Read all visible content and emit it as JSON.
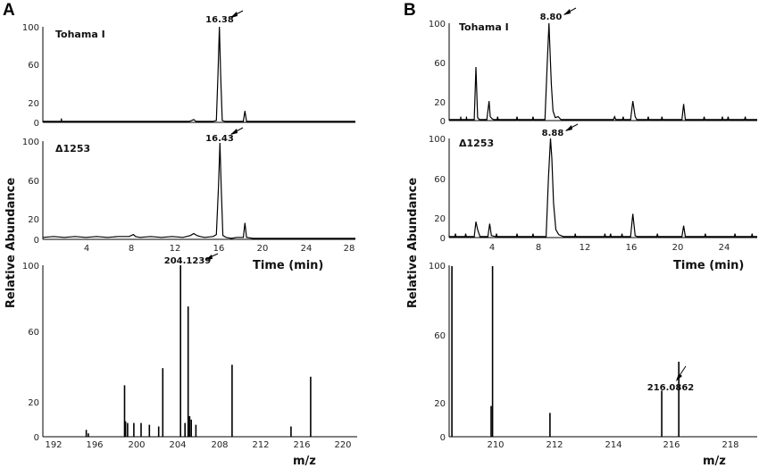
{
  "panels": [
    {
      "letter": "A",
      "ylabel": "Relative Abundance",
      "chromatograms": [
        {
          "trace_label": "Tohama I",
          "peak_label": "16.38",
          "x": [
            0,
            1.7,
            1.72,
            1.74,
            13.6,
            13.8,
            14.0,
            14.2,
            15.8,
            16.1,
            16.25,
            16.38,
            16.5,
            16.65,
            16.9,
            18.6,
            18.75,
            18.9,
            29
          ],
          "y": [
            1,
            1,
            4,
            1,
            1,
            2,
            3,
            1,
            1,
            2,
            50,
            100,
            50,
            2,
            1,
            1,
            12,
            1,
            1
          ]
        },
        {
          "trace_label": "Δ1253",
          "peak_label": "16.43",
          "x": [
            0,
            1,
            2,
            3,
            4,
            5,
            6,
            7,
            8,
            8.4,
            8.6,
            9,
            10,
            11,
            12,
            13,
            13.7,
            14.0,
            14.3,
            14.6,
            15,
            15.8,
            16.1,
            16.3,
            16.43,
            16.55,
            16.7,
            17,
            17.5,
            18,
            18.6,
            18.75,
            18.9,
            19.5,
            21,
            23,
            25,
            27,
            29
          ],
          "y": [
            2,
            3,
            2,
            3,
            2,
            3,
            2,
            3,
            3,
            5,
            3,
            2,
            3,
            2,
            3,
            2,
            4,
            6,
            4,
            3,
            2,
            3,
            5,
            55,
            100,
            55,
            4,
            2,
            1,
            2,
            2,
            17,
            2,
            1,
            1,
            1,
            1,
            1,
            1
          ]
        }
      ],
      "time_ticks": [
        "4",
        "8",
        "12",
        "16",
        "20",
        "24",
        "28"
      ],
      "time_axis_label": "Time (min)",
      "chrom_y_ticks": [
        "100",
        "60",
        "20",
        "0"
      ],
      "spectrum": {
        "peak_label": "204.1239",
        "x": [
          195.0,
          195.2,
          198.7,
          198.8,
          199.0,
          199.6,
          200.3,
          201.1,
          202.0,
          202.4,
          204.12,
          204.55,
          204.85,
          205.0,
          205.15,
          205.6,
          209.1,
          214.8,
          216.7
        ],
        "y": [
          4,
          2,
          30,
          9,
          8,
          8,
          8,
          7,
          6,
          40,
          100,
          8,
          76,
          12,
          10,
          7,
          42,
          6,
          35
        ],
        "x_ticks": [
          "192",
          "196",
          "200",
          "204",
          "208",
          "212",
          "216",
          "220"
        ],
        "y_ticks": [
          "100",
          "60",
          "20",
          "0"
        ],
        "xlabel": "m/z"
      }
    },
    {
      "letter": "B",
      "ylabel": "Relative Abundance",
      "chromatograms": [
        {
          "trace_label": "Tohama I",
          "peak_label": "8.80",
          "x": [
            0,
            1.0,
            1.02,
            1.04,
            1.5,
            1.52,
            1.54,
            2.2,
            2.35,
            2.5,
            2.65,
            3.3,
            3.5,
            3.6,
            3.75,
            3.9,
            4.2,
            4.25,
            4.3,
            5.9,
            5.95,
            6.0,
            7.3,
            7.35,
            7.4,
            8.4,
            8.6,
            8.75,
            8.8,
            8.95,
            9.1,
            9.3,
            9.55,
            9.8,
            10.2,
            14.4,
            14.5,
            14.6,
            15.2,
            15.25,
            15.3,
            15.9,
            16.1,
            16.3,
            16.45,
            17.4,
            17.45,
            17.5,
            18.6,
            18.65,
            18.7,
            20.4,
            20.55,
            20.7,
            22.3,
            22.35,
            22.4,
            23.9,
            23.95,
            24.0,
            24.4,
            24.45,
            24.5,
            25.9,
            25.95,
            26.0,
            27
          ],
          "y": [
            1,
            1,
            4,
            1,
            1,
            4,
            1,
            1,
            55,
            3,
            1,
            1,
            20,
            4,
            2,
            1,
            1,
            4,
            1,
            1,
            4,
            1,
            1,
            4,
            1,
            1,
            60,
            100,
            85,
            38,
            10,
            3,
            4,
            1,
            1,
            1,
            4,
            1,
            1,
            4,
            1,
            1,
            20,
            4,
            1,
            1,
            4,
            1,
            1,
            4,
            1,
            1,
            17,
            1,
            1,
            4,
            1,
            1,
            4,
            1,
            1,
            4,
            1,
            1,
            4,
            1,
            1
          ]
        },
        {
          "trace_label": "Δ1253",
          "peak_label": "8.88",
          "x": [
            0,
            0.5,
            0.55,
            0.6,
            1.4,
            1.45,
            1.5,
            2.2,
            2.35,
            2.5,
            2.7,
            3.4,
            3.55,
            3.7,
            4.1,
            4.15,
            4.2,
            5.9,
            5.95,
            6.0,
            7.3,
            7.35,
            7.4,
            8.5,
            8.7,
            8.88,
            9.0,
            9.15,
            9.35,
            9.6,
            10.0,
            11.0,
            11.05,
            11.1,
            13.6,
            13.65,
            13.7,
            14.1,
            14.15,
            14.2,
            15.1,
            15.15,
            15.2,
            15.9,
            16.1,
            16.3,
            16.5,
            18.2,
            18.25,
            18.3,
            20.4,
            20.55,
            20.7,
            22.4,
            22.45,
            22.5,
            25.0,
            25.05,
            25.1,
            26.5,
            26.55,
            26.6,
            27
          ],
          "y": [
            1,
            1,
            4,
            1,
            1,
            4,
            1,
            1,
            16,
            8,
            1,
            1,
            14,
            2,
            1,
            4,
            1,
            1,
            4,
            1,
            1,
            4,
            1,
            1,
            60,
            100,
            80,
            35,
            8,
            3,
            1,
            1,
            4,
            1,
            1,
            4,
            1,
            1,
            4,
            1,
            1,
            4,
            1,
            1,
            24,
            2,
            1,
            1,
            4,
            1,
            1,
            12,
            1,
            1,
            4,
            1,
            1,
            4,
            1,
            1,
            4,
            1,
            1
          ]
        }
      ],
      "time_ticks": [
        "4",
        "8",
        "12",
        "16",
        "20",
        "24"
      ],
      "time_axis_label": "Time (min)",
      "chrom_y_ticks": [
        "100",
        "60",
        "20",
        "0"
      ],
      "spectrum": {
        "peak_label": "216.0862",
        "x": [
          208.6,
          210.0,
          210.05,
          212.1,
          216.09,
          216.7
        ],
        "y": [
          100,
          18,
          100,
          14,
          27,
          44
        ],
        "x_ticks": [
          "210",
          "212",
          "214",
          "216",
          "218"
        ],
        "y_ticks": [
          "100",
          "60",
          "20",
          "0"
        ],
        "xlabel": "m/z"
      }
    }
  ],
  "chart_data": [
    {
      "type": "line",
      "panel": "A",
      "series": [
        {
          "name": "Tohama I",
          "x": [
            1.72,
            14.0,
            16.38,
            18.75
          ],
          "y": [
            4,
            3,
            100,
            12
          ]
        },
        {
          "name": "Δ1253",
          "x": [
            8.4,
            14.0,
            16.43,
            18.75
          ],
          "y": [
            5,
            6,
            100,
            17
          ]
        }
      ],
      "annotations": [
        "16.38",
        "16.43"
      ],
      "xlabel": "Time (min)",
      "ylabel": "Relative Abundance",
      "xlim": [
        0,
        29
      ],
      "ylim": [
        0,
        100
      ]
    },
    {
      "type": "bar",
      "panel": "A",
      "x": [
        195.0,
        198.7,
        202.4,
        204.12,
        204.85,
        209.1,
        216.7
      ],
      "y": [
        4,
        30,
        40,
        100,
        76,
        42,
        35
      ],
      "annotations": [
        "204.1239"
      ],
      "xlabel": "m/z",
      "ylabel": "Relative Abundance",
      "xlim": [
        191,
        221
      ],
      "ylim": [
        0,
        100
      ]
    },
    {
      "type": "line",
      "panel": "B",
      "series": [
        {
          "name": "Tohama I",
          "x": [
            2.35,
            3.5,
            8.8,
            16.1,
            20.55
          ],
          "y": [
            55,
            20,
            100,
            20,
            17
          ]
        },
        {
          "name": "Δ1253",
          "x": [
            2.35,
            3.55,
            8.88,
            16.1,
            20.55
          ],
          "y": [
            16,
            14,
            100,
            24,
            12
          ]
        }
      ],
      "annotations": [
        "8.80",
        "8.88"
      ],
      "xlabel": "Time (min)",
      "ylabel": "Relative Abundance",
      "xlim": [
        0,
        27
      ],
      "ylim": [
        0,
        100
      ]
    },
    {
      "type": "bar",
      "panel": "B",
      "x": [
        208.6,
        210.05,
        212.1,
        216.09,
        216.7
      ],
      "y": [
        100,
        100,
        14,
        27,
        44
      ],
      "annotations": [
        "216.0862"
      ],
      "xlabel": "m/z",
      "ylabel": "Relative Abundance",
      "xlim": [
        208.5,
        219.5
      ],
      "ylim": [
        0,
        100
      ]
    }
  ]
}
